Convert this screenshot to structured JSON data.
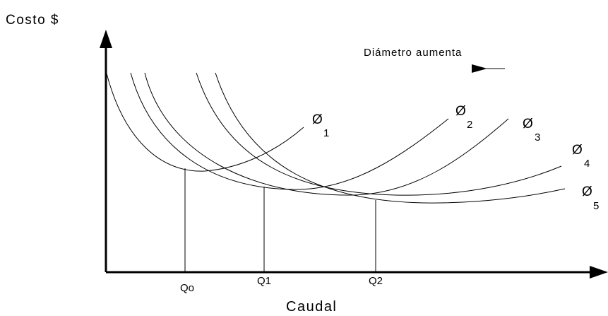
{
  "y_axis_label": "Costo $",
  "x_axis_label": "Caudal",
  "annotation": "Diámetro aumenta",
  "curves": [
    {
      "symbol": "Ø",
      "subscript": "1"
    },
    {
      "symbol": "Ø",
      "subscript": "2"
    },
    {
      "symbol": "Ø",
      "subscript": "3"
    },
    {
      "symbol": "Ø",
      "subscript": "4"
    },
    {
      "symbol": "Ø",
      "subscript": "5"
    }
  ],
  "x_marks": [
    "Qo",
    "Q1",
    "Q2"
  ]
}
